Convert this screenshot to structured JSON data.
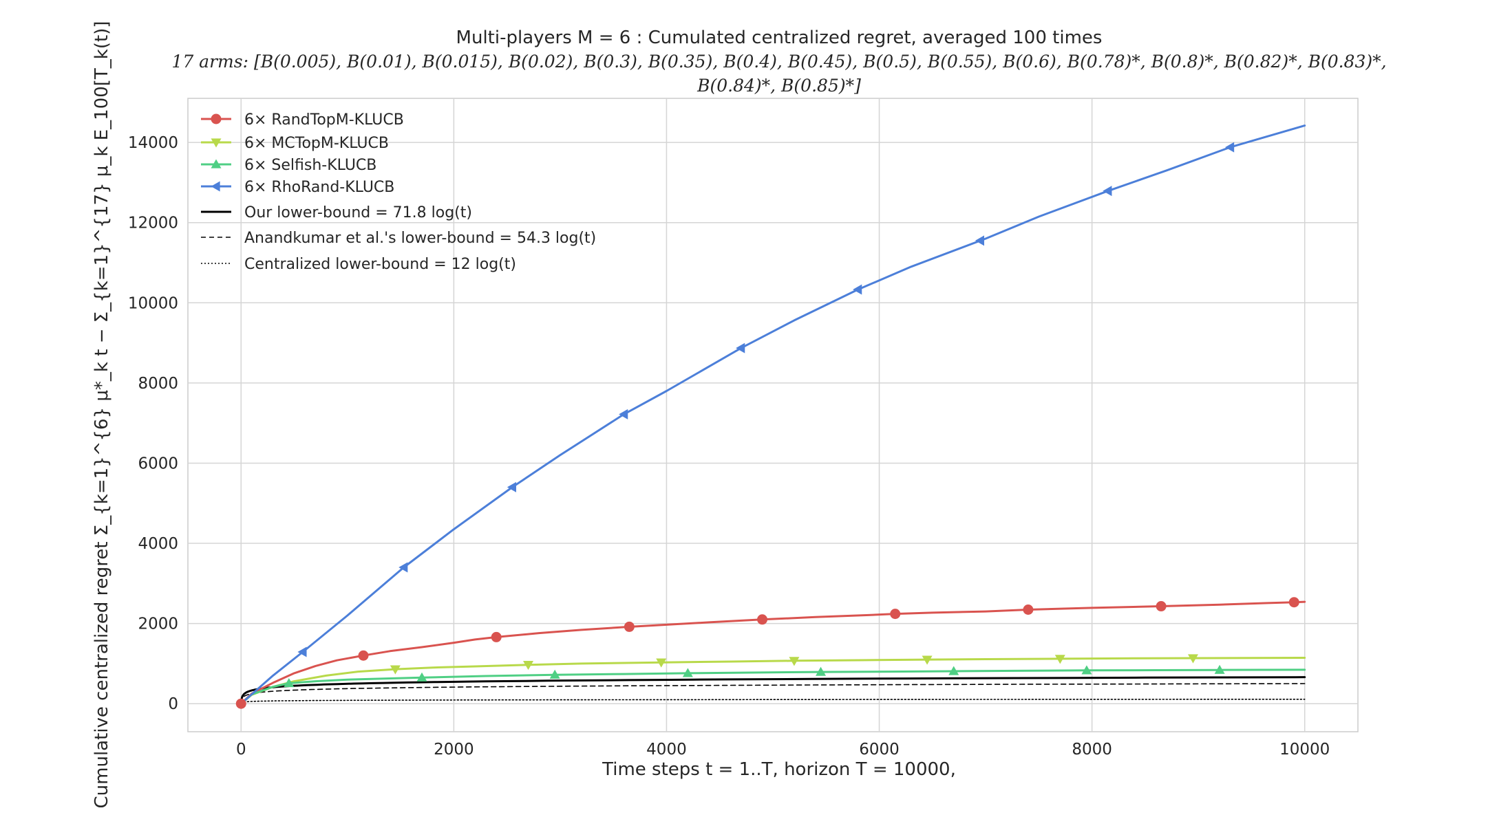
{
  "chart_data": {
    "type": "line",
    "title": "Multi-players M = 6 : Cumulated centralized regret, averaged 100 times",
    "subtitle_line1": "17 arms: [B(0.005), B(0.01), B(0.015), B(0.02), B(0.3), B(0.35), B(0.4), B(0.45), B(0.5), B(0.55), B(0.6), B(0.78)*, B(0.8)*, B(0.82)*, B(0.83)*,",
    "subtitle_line2": "B(0.84)*, B(0.85)*]",
    "xlabel": "Time steps t = 1..T, horizon T = 10000,",
    "ylabel": "Cumulative centralized regret Σ_{k=1}^{6} μ*_k t − Σ_{k=1}^{17} μ_k E_100[T_k(t)]",
    "xlim": [
      -500,
      10500
    ],
    "ylim": [
      -700,
      15100
    ],
    "xticks": [
      0,
      2000,
      4000,
      6000,
      8000,
      10000
    ],
    "yticks": [
      0,
      2000,
      4000,
      6000,
      8000,
      10000,
      12000,
      14000
    ],
    "grid": true,
    "legend_position": "top-left",
    "series": [
      {
        "name": "6× RandTopM-KLUCB",
        "color": "#d9534f",
        "marker": "circle",
        "style": "solid",
        "x": [
          0,
          100,
          300,
          500,
          700,
          900,
          1150,
          1400,
          1700,
          2000,
          2200,
          2400,
          2800,
          3200,
          3600,
          4000,
          4400,
          4900,
          5400,
          5900,
          6150,
          6500,
          7000,
          7400,
          8000,
          8650,
          9200,
          9650,
          9900,
          10000
        ],
        "y": [
          0,
          250,
          520,
          760,
          940,
          1080,
          1200,
          1310,
          1410,
          1520,
          1600,
          1660,
          1760,
          1840,
          1910,
          1970,
          2030,
          2100,
          2160,
          2210,
          2240,
          2270,
          2300,
          2345,
          2390,
          2430,
          2470,
          2510,
          2530,
          2540
        ],
        "marker_x": [
          0,
          1150,
          2400,
          3650,
          4900,
          6150,
          7400,
          8650,
          9900
        ]
      },
      {
        "name": "6× MCTopM-KLUCB",
        "color": "#b8d94a",
        "marker": "triangle-down",
        "style": "solid",
        "x": [
          0,
          100,
          300,
          500,
          800,
          1100,
          1450,
          1800,
          2200,
          2700,
          3200,
          3950,
          4600,
          5200,
          5800,
          6450,
          7000,
          7700,
          8400,
          8950,
          9500,
          10000
        ],
        "y": [
          0,
          220,
          420,
          560,
          700,
          800,
          860,
          900,
          930,
          970,
          1000,
          1030,
          1050,
          1070,
          1085,
          1100,
          1110,
          1120,
          1130,
          1135,
          1140,
          1145
        ],
        "marker_x": [
          1450,
          2700,
          3950,
          5200,
          6450,
          7700,
          8950
        ]
      },
      {
        "name": "6× Selfish-KLUCB",
        "color": "#4fcf84",
        "marker": "triangle-up",
        "style": "solid",
        "x": [
          0,
          100,
          300,
          450,
          700,
          1000,
          1700,
          2300,
          2950,
          3600,
          4200,
          4800,
          5450,
          6100,
          6700,
          7300,
          7950,
          8600,
          9200,
          10000
        ],
        "y": [
          0,
          230,
          420,
          510,
          560,
          600,
          650,
          690,
          720,
          740,
          760,
          775,
          790,
          800,
          810,
          820,
          830,
          835,
          840,
          845
        ],
        "marker_x": [
          450,
          1700,
          2950,
          4200,
          5450,
          6700,
          7950,
          9200
        ]
      },
      {
        "name": "6× RhoRand-KLUCB",
        "color": "#4c7fd9",
        "marker": "triangle-left",
        "style": "solid",
        "x": [
          0,
          150,
          300,
          580,
          1000,
          1530,
          2000,
          2550,
          3000,
          3600,
          4000,
          4700,
          5200,
          5800,
          6300,
          7000,
          7500,
          8150,
          8700,
          9300,
          10000
        ],
        "y": [
          0,
          350,
          700,
          1290,
          2200,
          3400,
          4350,
          5400,
          6200,
          7220,
          7800,
          8870,
          9560,
          10330,
          10900,
          11600,
          12150,
          12790,
          13300,
          13880,
          14420
        ],
        "marker_x": [
          580,
          1530,
          2550,
          3600,
          4700,
          5800,
          6950,
          8150,
          9300
        ]
      },
      {
        "name": "Our lower-bound = 71.8 log(t)",
        "color": "#000000",
        "marker": "none",
        "style": "solid",
        "formula_coefficient": 71.8
      },
      {
        "name": "Anandkumar et al.'s lower-bound = 54.3 log(t)",
        "color": "#000000",
        "marker": "none",
        "style": "dashed",
        "formula_coefficient": 54.3
      },
      {
        "name": "Centralized lower-bound = 12 log(t)",
        "color": "#000000",
        "marker": "none",
        "style": "dotted",
        "formula_coefficient": 12
      }
    ]
  }
}
